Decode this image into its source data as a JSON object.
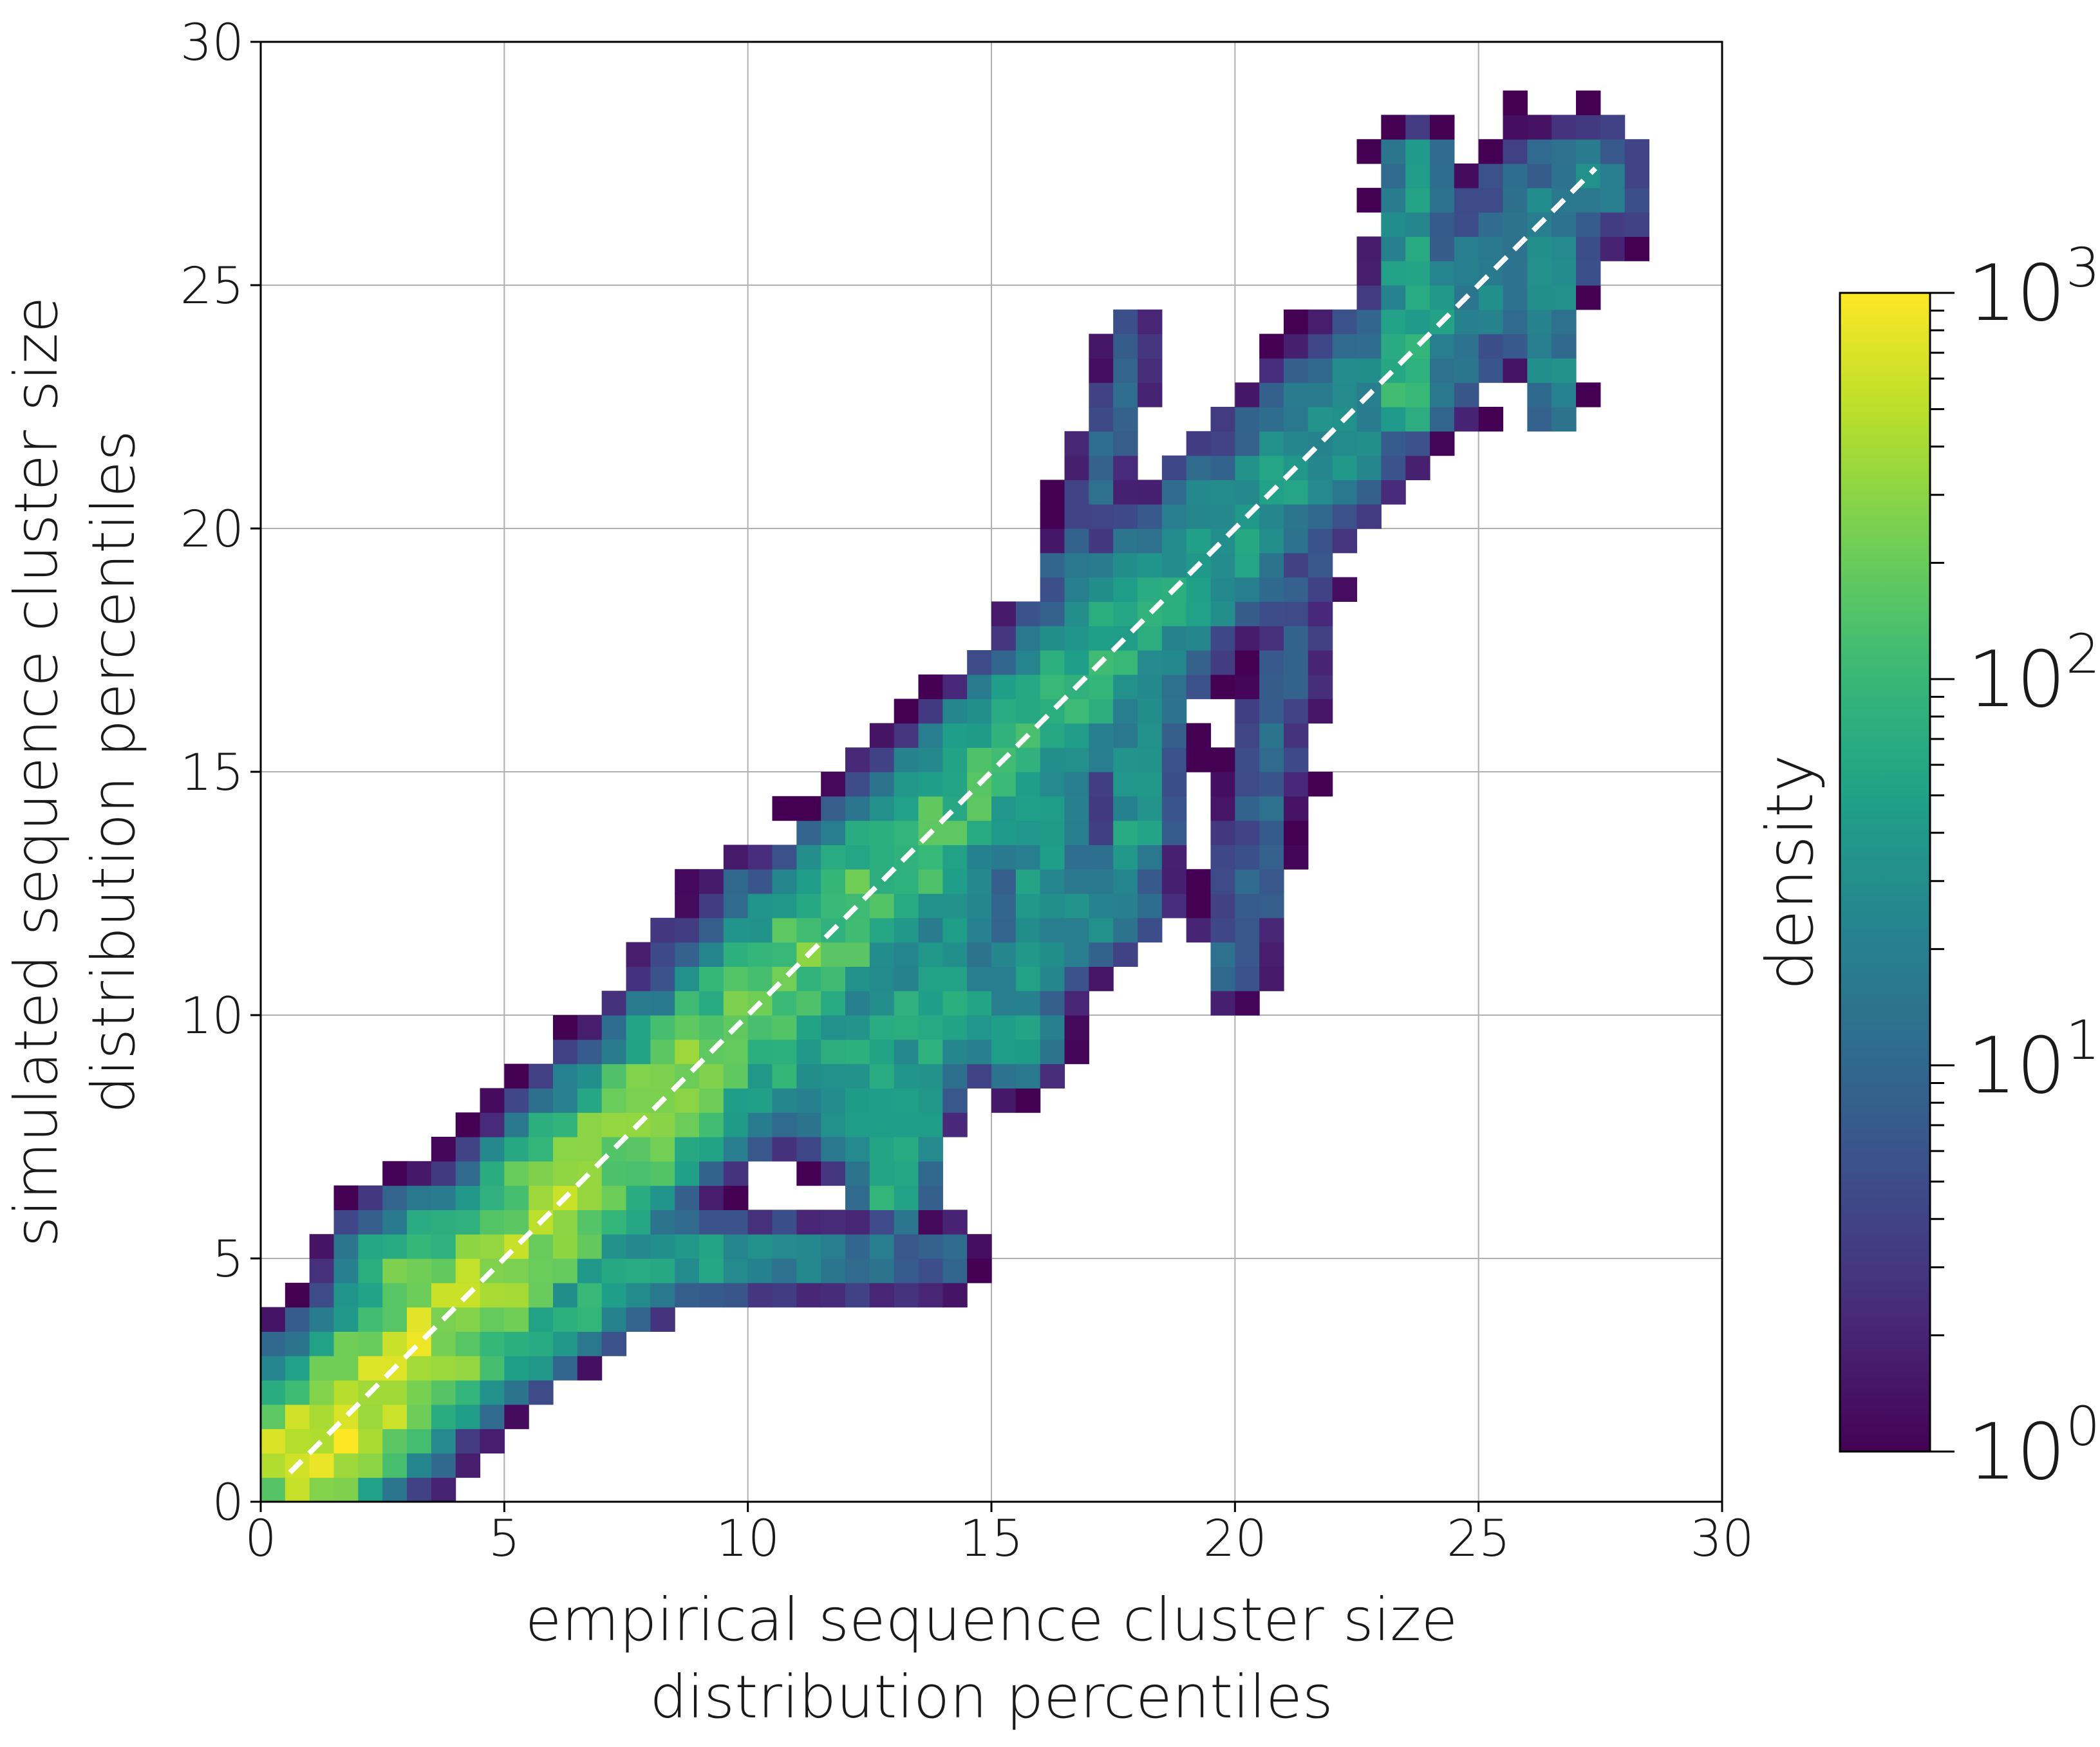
{
  "chart_data": {
    "type": "heatmap",
    "title": "",
    "xlabel_lines": [
      "empirical sequence cluster size",
      "distribution percentiles"
    ],
    "ylabel_lines": [
      "simulated sequence cluster size",
      "distribution percentiles"
    ],
    "xlim": [
      0,
      30
    ],
    "ylim": [
      0,
      30
    ],
    "xticks": [
      0,
      5,
      10,
      15,
      20,
      25,
      30
    ],
    "yticks": [
      0,
      5,
      10,
      15,
      20,
      25,
      30
    ],
    "grid": true,
    "bin_width": 0.5,
    "colormap": "viridis",
    "color_scale": "log",
    "colorbar": {
      "label": "density",
      "range": [
        1,
        1000
      ],
      "major_ticks": [
        1,
        10,
        100,
        1000
      ],
      "major_tick_labels": [
        {
          "base": "10",
          "exp": "0"
        },
        {
          "base": "10",
          "exp": "1"
        },
        {
          "base": "10",
          "exp": "2"
        },
        {
          "base": "10",
          "exp": "3"
        }
      ]
    },
    "reference_line": {
      "style": "dashed",
      "color": "#ffffff",
      "from": [
        0.6,
        0.6
      ],
      "to": [
        27.4,
        27.4
      ]
    },
    "ridges": [
      {
        "from": [
          0.6,
          0.8
        ],
        "to": [
          8.5,
          5.0
        ],
        "width": 1.0,
        "peak_log": 3.0,
        "end_log": 1.5
      },
      {
        "from": [
          1.2,
          1.2
        ],
        "to": [
          27.0,
          27.0
        ],
        "width": 1.7,
        "peak_log": 2.8,
        "end_log": 1.3
      },
      {
        "from": [
          3.0,
          4.5
        ],
        "to": [
          8.0,
          7.5
        ],
        "width": 1.5,
        "peak_log": 2.3,
        "end_log": 1.5
      },
      {
        "from": [
          8.5,
          5.0
        ],
        "to": [
          14.0,
          5.0
        ],
        "width": 0.9,
        "peak_log": 1.7,
        "end_log": 1.0
      },
      {
        "from": [
          8.0,
          7.5
        ],
        "to": [
          14.0,
          10.5
        ],
        "width": 1.3,
        "peak_log": 1.8,
        "end_log": 1.8
      },
      {
        "from": [
          13.0,
          6.5
        ],
        "to": [
          14.5,
          13.5
        ],
        "width": 0.9,
        "peak_log": 1.9,
        "end_log": 1.6
      },
      {
        "from": [
          5.0,
          6.0
        ],
        "to": [
          10.0,
          12.5
        ],
        "width": 1.2,
        "peak_log": 1.5,
        "end_log": 0.9
      },
      {
        "from": [
          12.0,
          8.0
        ],
        "to": [
          17.5,
          12.5
        ],
        "width": 1.3,
        "peak_log": 1.7,
        "end_log": 1.4
      },
      {
        "from": [
          15.5,
          9.5
        ],
        "to": [
          17.0,
          19.0
        ],
        "width": 1.1,
        "peak_log": 1.6,
        "end_log": 1.4
      },
      {
        "from": [
          18.0,
          13.5
        ],
        "to": [
          18.5,
          19.5
        ],
        "width": 0.8,
        "peak_log": 1.7,
        "end_log": 1.6
      },
      {
        "from": [
          20.0,
          11.0
        ],
        "to": [
          21.5,
          19.5
        ],
        "width": 1.0,
        "peak_log": 1.0,
        "end_log": 0.8
      },
      {
        "from": [
          16.5,
          18.5
        ],
        "to": [
          18.0,
          24.0
        ],
        "width": 0.8,
        "peak_log": 1.0,
        "end_log": 0.8
      },
      {
        "from": [
          23.5,
          22.5
        ],
        "to": [
          23.7,
          27.5
        ],
        "width": 0.8,
        "peak_log": 2.0,
        "end_log": 1.5
      },
      {
        "from": [
          26.5,
          22.5
        ],
        "to": [
          26.5,
          27.0
        ],
        "width": 0.6,
        "peak_log": 1.5,
        "end_log": 1.4
      }
    ]
  }
}
